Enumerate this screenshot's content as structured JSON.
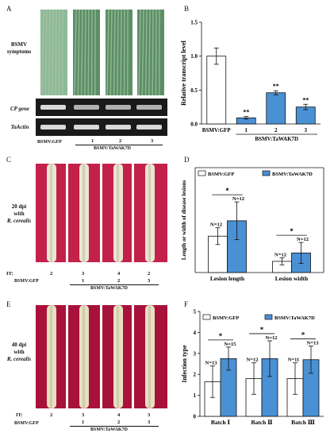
{
  "panels": {
    "a": {
      "letter": "A",
      "photo_label": "BSMV symptoms",
      "gel1_label": "CP gene",
      "gel2_label": "TaActin",
      "lanes": [
        "1",
        "2",
        "3"
      ],
      "ctrl": "BSMV:GFP",
      "treat": "BSMV:TaWAK7D",
      "colors": {
        "leaf": "#5c8f66",
        "leafLight": "#a9c9a8",
        "gelBg": "#1a1a1a",
        "band": "#e4e4e4"
      }
    },
    "c": {
      "letter": "C",
      "side1": "20 dpi",
      "side2": "with",
      "side3": "R. cerealis",
      "it_label": "IT:",
      "it_values": [
        "2",
        "3",
        "4",
        "2"
      ],
      "lanes": [
        "1",
        "2",
        "3"
      ],
      "ctrl": "BSMV:GFP",
      "treat": "BSMV:TaWAK7D",
      "colors": {
        "bg": "#c3214a",
        "stem": "#e9e6d6"
      }
    },
    "e": {
      "letter": "E",
      "side1": "40 dpi",
      "side2": "with",
      "side3": "R. cerealis",
      "it_label": "IT:",
      "it_values": [
        "2",
        "3",
        "4",
        "3"
      ],
      "lanes": [
        "1",
        "2",
        "3"
      ],
      "ctrl": "BSMV:GFP",
      "treat": "BSMV:TaWAK7D",
      "colors": {
        "bg": "#a8123a",
        "stem": "#e6dfc4"
      }
    }
  },
  "chart_data": [
    {
      "panel": "B",
      "type": "bar",
      "ylabel": "Relative transcript level",
      "ylim": [
        0,
        1.5
      ],
      "yticks": [
        "0.0",
        "0.5",
        "1.0",
        "1.5"
      ],
      "categories": [
        "BSMV:GFP",
        "1",
        "2",
        "3"
      ],
      "group_label": "BSMV:TaWAK7D",
      "values": [
        1.0,
        0.09,
        0.46,
        0.25
      ],
      "errors": [
        0.12,
        0.02,
        0.03,
        0.04
      ],
      "colors": [
        "#ffffff",
        "#4a90d4",
        "#4a90d4",
        "#4a90d4"
      ],
      "sig": [
        "",
        "**",
        "**",
        "**"
      ]
    },
    {
      "panel": "D",
      "type": "bar",
      "ylabel": "Length or width of disease lesions",
      "ylim": [
        0,
        1.5
      ],
      "categories": [
        "Lesion length",
        "Lesion width"
      ],
      "legend": [
        "BSMV:GFP",
        "BSMV:TaWAK7D"
      ],
      "series": [
        {
          "name": "BSMV:GFP",
          "color": "#ffffff",
          "values": [
            0.52,
            0.16
          ],
          "errors": [
            0.12,
            0.05
          ],
          "n": [
            "N=12",
            "N=12"
          ]
        },
        {
          "name": "BSMV:TaWAK7D",
          "color": "#4a90d4",
          "values": [
            0.74,
            0.28
          ],
          "errors": [
            0.27,
            0.15
          ],
          "n": [
            "N=12",
            "N=12"
          ]
        }
      ],
      "sig": [
        "*",
        "*"
      ]
    },
    {
      "panel": "F",
      "type": "bar",
      "ylabel": "Infection type",
      "ylim": [
        0,
        5
      ],
      "yticks": [
        "0",
        "1",
        "2",
        "3",
        "4",
        "5"
      ],
      "categories": [
        "Batch Ⅰ",
        "Batch Ⅱ",
        "Batch Ⅲ"
      ],
      "legend": [
        "BSMV:GFP",
        "BSMV:TaWAK7D"
      ],
      "series": [
        {
          "name": "BSMV:GFP",
          "color": "#ffffff",
          "values": [
            1.65,
            1.8,
            1.8
          ],
          "errors": [
            0.75,
            0.75,
            0.75
          ],
          "n": [
            "N=13",
            "N=12",
            "N=11"
          ]
        },
        {
          "name": "BSMV:TaWAK7D",
          "color": "#4a90d4",
          "values": [
            2.75,
            2.75,
            2.7
          ],
          "errors": [
            0.55,
            0.85,
            0.65
          ],
          "n": [
            "N=15",
            "N=12",
            "N=13"
          ]
        }
      ],
      "sig": [
        "*",
        "*",
        "*"
      ]
    }
  ]
}
